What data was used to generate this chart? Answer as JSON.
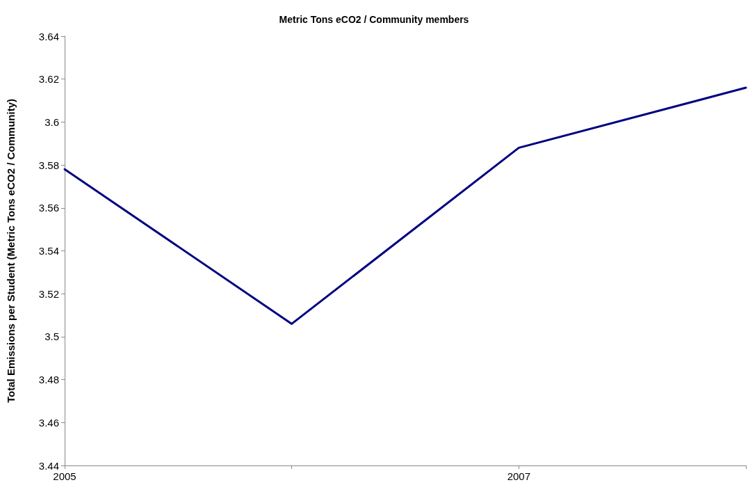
{
  "chart_data": {
    "type": "line",
    "title": "Metric Tons eCO2 / Community members",
    "ylabel": "Total Emissions per Student (Metric Tons eCO2 / Community)",
    "categories": [
      "2005",
      null,
      "2007",
      null
    ],
    "series": [
      {
        "color": "#000080",
        "values": [
          3.578,
          3.506,
          3.588,
          3.616
        ]
      }
    ],
    "ylim": [
      3.44,
      3.64
    ],
    "yticks": [
      3.44,
      3.46,
      3.48,
      3.5,
      3.52,
      3.54,
      3.56,
      3.58,
      3.6,
      3.62,
      3.64
    ],
    "grid": false,
    "marker": "none",
    "line_style": "solid"
  }
}
